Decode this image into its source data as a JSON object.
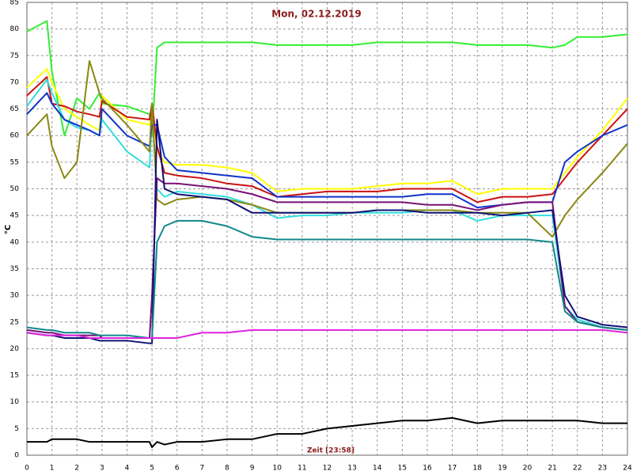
{
  "chart_data": {
    "type": "line",
    "title": "Mon, 02.12.2019",
    "xlabel": "Zeit [23:58]",
    "ylabel": "°C",
    "x": [
      0,
      0.8,
      1,
      1.5,
      2,
      2.5,
      2.9,
      3,
      4,
      4.9,
      5,
      5.2,
      5.5,
      6,
      7,
      8,
      9,
      10,
      11,
      12,
      13,
      14,
      15,
      16,
      17,
      18,
      19,
      20,
      21,
      21.5,
      22,
      23,
      24
    ],
    "series": [
      {
        "color": "#33ee33",
        "values": [
          79.5,
          81.5,
          72,
          60,
          67,
          65,
          68,
          66,
          65.5,
          64,
          60,
          76.5,
          77.5,
          77.5,
          77.5,
          77.5,
          77.5,
          77,
          77,
          77,
          77,
          77.5,
          77.5,
          77.5,
          77.5,
          77,
          77,
          77,
          76.5,
          77,
          78.5,
          78.5,
          79
        ]
      },
      {
        "color": "#ffff00",
        "values": [
          69,
          72.5,
          70,
          65,
          63.5,
          62,
          61,
          67.5,
          63,
          62,
          66,
          57,
          55,
          54.5,
          54.5,
          54,
          53,
          49.5,
          50,
          50,
          50,
          50.5,
          51,
          51,
          51.5,
          49,
          50,
          50,
          50,
          53,
          56,
          61,
          67
        ]
      },
      {
        "color": "#cc1111",
        "values": [
          67.5,
          71,
          66,
          65.5,
          64.5,
          64,
          63.5,
          66.5,
          63.5,
          63,
          66,
          58,
          53,
          52.5,
          52,
          51,
          50.5,
          48.5,
          49,
          49.5,
          49.5,
          49.5,
          50,
          50,
          50,
          47.5,
          48.5,
          48.5,
          49,
          52,
          55,
          60,
          65
        ]
      },
      {
        "color": "#33dddd",
        "values": [
          65.5,
          70.5,
          68,
          63,
          61.5,
          61,
          60,
          63,
          57,
          54,
          64,
          50,
          48.5,
          49.5,
          49,
          48.5,
          47,
          44.5,
          45,
          45,
          45.5,
          45.5,
          45.5,
          46,
          46,
          44,
          45,
          45,
          45,
          28,
          25.5,
          24,
          23.5
        ]
      },
      {
        "color": "#1133cc",
        "values": [
          64,
          68,
          66,
          63,
          62,
          61,
          60,
          65,
          60,
          58,
          62,
          62,
          56,
          53.5,
          53,
          52.5,
          52,
          48.5,
          48.5,
          48.5,
          48.5,
          48.5,
          48.5,
          49,
          49,
          46.5,
          47,
          47.5,
          47.5,
          55,
          57,
          60,
          62
        ]
      },
      {
        "color": "#888811",
        "values": [
          60,
          64,
          58,
          52,
          55,
          74,
          68,
          67,
          62,
          57,
          66,
          48,
          47,
          48,
          48.5,
          48,
          47,
          45.5,
          45.5,
          45.5,
          45.5,
          46,
          46,
          46,
          46,
          45.5,
          45.5,
          45.5,
          41,
          45,
          48,
          53,
          58.5
        ]
      },
      {
        "color": "#771177",
        "values": [
          23.5,
          23,
          23,
          22.5,
          22.5,
          22.5,
          22.5,
          22,
          22,
          22,
          30,
          52,
          51,
          51,
          50.5,
          50,
          49,
          47.5,
          47.5,
          47.5,
          47.5,
          47.5,
          47.5,
          47,
          47,
          46,
          47,
          47.5,
          47.5,
          28,
          25,
          24,
          23.5
        ]
      },
      {
        "color": "#111177",
        "values": [
          23,
          22.5,
          22.5,
          22,
          22,
          22,
          21.5,
          21.5,
          21.5,
          21,
          21,
          63,
          50,
          49,
          48.5,
          48,
          45.5,
          45.5,
          45.5,
          45.5,
          45.5,
          46,
          46,
          45.5,
          45.5,
          45.5,
          45,
          45.5,
          46,
          30,
          26,
          24.5,
          24
        ]
      },
      {
        "color": "#118888",
        "values": [
          24,
          23.5,
          23.5,
          23,
          23,
          23,
          22.5,
          22.5,
          22.5,
          22,
          22,
          40,
          43,
          44,
          44,
          43,
          41,
          40.5,
          40.5,
          40.5,
          40.5,
          40.5,
          40.5,
          40.5,
          40.5,
          40.5,
          40.5,
          40.5,
          40,
          27,
          25,
          24,
          23.5
        ]
      },
      {
        "color": "#dd22dd",
        "values": [
          23,
          22.5,
          22.5,
          22.5,
          22.5,
          22,
          22,
          22,
          22,
          22,
          22,
          22,
          22,
          22,
          23,
          23,
          23.5,
          23.5,
          23.5,
          23.5,
          23.5,
          23.5,
          23.5,
          23.5,
          23.5,
          23.5,
          23.5,
          23.5,
          23.5,
          23.5,
          23.5,
          23.5,
          23
        ]
      },
      {
        "color": "#000000",
        "values": [
          2.5,
          2.5,
          3,
          3,
          3,
          2.5,
          2.5,
          2.5,
          2.5,
          2.5,
          1.5,
          2.5,
          2,
          2.5,
          2.5,
          3,
          3,
          4,
          4,
          5,
          5.5,
          6,
          6.5,
          6.5,
          7,
          6,
          6.5,
          6.5,
          6.5,
          6.5,
          6.5,
          6,
          6
        ]
      }
    ],
    "xlim": [
      0,
      24
    ],
    "ylim": [
      0,
      85
    ],
    "xticks": [
      0,
      1,
      2,
      3,
      4,
      5,
      6,
      7,
      8,
      9,
      10,
      11,
      12,
      13,
      14,
      15,
      16,
      17,
      18,
      19,
      20,
      21,
      22,
      23,
      24
    ],
    "yticks": [
      0,
      5,
      10,
      15,
      20,
      25,
      30,
      35,
      40,
      45,
      50,
      55,
      60,
      65,
      70,
      75,
      80,
      85
    ],
    "grid": true
  }
}
